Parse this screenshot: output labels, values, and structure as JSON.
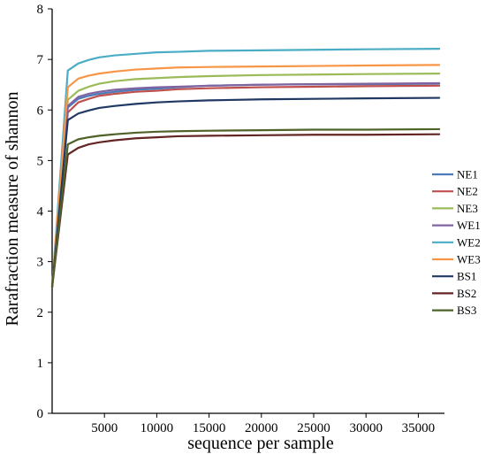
{
  "chart_data": {
    "type": "line",
    "title": "",
    "xlabel": "sequence per sample",
    "ylabel": "Rarafraction measure of shannon",
    "xlim": [
      0,
      37500
    ],
    "ylim": [
      0,
      8
    ],
    "x_ticks": [
      5000,
      10000,
      15000,
      20000,
      25000,
      30000,
      35000
    ],
    "y_ticks": [
      0,
      1,
      2,
      3,
      4,
      5,
      6,
      7,
      8
    ],
    "grid": false,
    "legend_position": "right",
    "x": [
      1,
      1500,
      2500,
      3500,
      4500,
      6000,
      8000,
      10000,
      12000,
      15000,
      20000,
      25000,
      30000,
      37000
    ],
    "series": [
      {
        "name": "NE1",
        "color": "#4a7ab7",
        "values": [
          2.5,
          6.05,
          6.22,
          6.28,
          6.32,
          6.36,
          6.4,
          6.42,
          6.45,
          6.48,
          6.5,
          6.51,
          6.51,
          6.52
        ]
      },
      {
        "name": "NE2",
        "color": "#c0504d",
        "values": [
          2.5,
          5.95,
          6.15,
          6.22,
          6.28,
          6.32,
          6.36,
          6.38,
          6.41,
          6.43,
          6.45,
          6.46,
          6.47,
          6.48
        ]
      },
      {
        "name": "NE3",
        "color": "#9bbb59",
        "values": [
          2.5,
          6.2,
          6.38,
          6.46,
          6.52,
          6.57,
          6.61,
          6.63,
          6.65,
          6.67,
          6.69,
          6.7,
          6.71,
          6.72
        ]
      },
      {
        "name": "WE1",
        "color": "#8064a2",
        "values": [
          2.5,
          6.08,
          6.26,
          6.32,
          6.36,
          6.4,
          6.43,
          6.45,
          6.46,
          6.48,
          6.5,
          6.51,
          6.52,
          6.53
        ]
      },
      {
        "name": "WE2",
        "color": "#4bacc6",
        "values": [
          2.5,
          6.78,
          6.92,
          6.99,
          7.04,
          7.08,
          7.11,
          7.14,
          7.15,
          7.17,
          7.18,
          7.19,
          7.2,
          7.21
        ]
      },
      {
        "name": "WE3",
        "color": "#f79646",
        "values": [
          2.5,
          6.45,
          6.62,
          6.68,
          6.72,
          6.76,
          6.8,
          6.82,
          6.84,
          6.85,
          6.86,
          6.87,
          6.88,
          6.89
        ]
      },
      {
        "name": "BS1",
        "color": "#1f3864",
        "values": [
          2.5,
          5.8,
          5.93,
          5.99,
          6.04,
          6.08,
          6.12,
          6.15,
          6.17,
          6.19,
          6.21,
          6.22,
          6.23,
          6.24
        ]
      },
      {
        "name": "BS2",
        "color": "#632523",
        "values": [
          2.5,
          5.12,
          5.25,
          5.32,
          5.36,
          5.4,
          5.44,
          5.46,
          5.48,
          5.49,
          5.5,
          5.51,
          5.51,
          5.52
        ]
      },
      {
        "name": "BS3",
        "color": "#4f6228",
        "values": [
          2.5,
          5.32,
          5.42,
          5.46,
          5.49,
          5.52,
          5.55,
          5.57,
          5.58,
          5.59,
          5.6,
          5.61,
          5.61,
          5.62
        ]
      }
    ]
  }
}
